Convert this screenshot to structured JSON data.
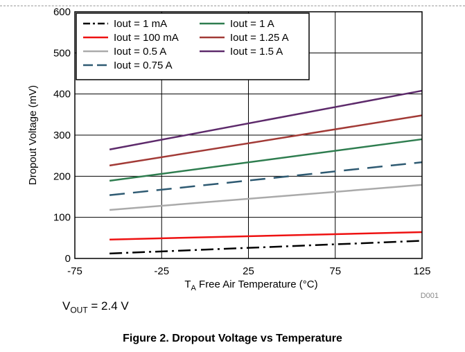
{
  "chart_data": {
    "type": "line",
    "x": [
      -55,
      125
    ],
    "xlim": [
      -75,
      125
    ],
    "ylim": [
      0,
      600
    ],
    "xticks": [
      "-75",
      "-25",
      "25",
      "75",
      "125"
    ],
    "yticks": [
      "0",
      "100",
      "200",
      "300",
      "400",
      "500",
      "600"
    ],
    "xlabel_prefix": "T",
    "xlabel_sub": "A",
    "xlabel_rest": " Free Air Temperature (°C)",
    "ylabel": "Dropout Voltage (mV)",
    "grid": true,
    "legend_position": "top-left",
    "series": [
      {
        "name": "Iout = 1 mA",
        "color": "#000000",
        "dash": "dashdot",
        "values": [
          12,
          43
        ]
      },
      {
        "name": "Iout = 100 mA",
        "color": "#ee1111",
        "dash": "solid",
        "values": [
          46,
          64
        ]
      },
      {
        "name": "Iout = 0.5 A",
        "color": "#aaaaaa",
        "dash": "solid",
        "values": [
          118,
          179
        ]
      },
      {
        "name": "Iout = 0.75 A",
        "color": "#2e5a72",
        "dash": "dashed",
        "values": [
          154,
          234
        ]
      },
      {
        "name": "Iout = 1 A",
        "color": "#2e7d4f",
        "dash": "solid",
        "values": [
          189,
          290
        ]
      },
      {
        "name": "Iout = 1.25 A",
        "color": "#a23a36",
        "dash": "solid",
        "values": [
          226,
          348
        ]
      },
      {
        "name": "Iout = 1.5 A",
        "color": "#5d2a6b",
        "dash": "solid",
        "values": [
          265,
          408
        ]
      }
    ],
    "legend_order": [
      0,
      4,
      1,
      5,
      2,
      6,
      3
    ],
    "id_label": "D001"
  },
  "note": {
    "prefix": "V",
    "sub": "OUT",
    "rest": " = 2.4 V"
  },
  "caption": "Figure 2. Dropout Voltage vs Temperature"
}
